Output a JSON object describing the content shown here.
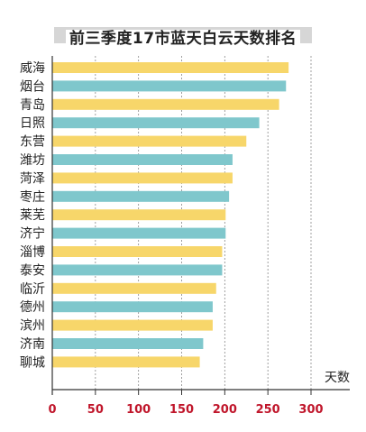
{
  "colors": {
    "bar_a": "#f7d66a",
    "bar_b": "#7fc7cc",
    "tick_text": "#c0162b",
    "axis": "#333333",
    "grid": "#888888"
  },
  "chart_data": {
    "type": "bar",
    "orientation": "horizontal",
    "title": "前三季度17市蓝天白云天数排名",
    "xlabel": "天数",
    "ylabel": "",
    "xlim": [
      0,
      300
    ],
    "xticks": [
      "0",
      "50",
      "100",
      "150",
      "200",
      "250",
      "300"
    ],
    "xtick_values": [
      0,
      50,
      100,
      150,
      200,
      250,
      300
    ],
    "grid": "vertical-dashed",
    "categories": [
      "威海",
      "烟台",
      "青岛",
      "日照",
      "东营",
      "潍坊",
      "菏泽",
      "枣庄",
      "莱芜",
      "济宁",
      "淄博",
      "泰安",
      "临沂",
      "德州",
      "滨州",
      "济南",
      "聊城"
    ],
    "values": [
      274,
      271,
      263,
      240,
      225,
      209,
      209,
      205,
      201,
      201,
      197,
      197,
      190,
      186,
      186,
      175,
      171
    ],
    "bar_colors": [
      "bar_a",
      "bar_b",
      "bar_a",
      "bar_b",
      "bar_a",
      "bar_b",
      "bar_a",
      "bar_b",
      "bar_a",
      "bar_b",
      "bar_a",
      "bar_b",
      "bar_a",
      "bar_b",
      "bar_a",
      "bar_b",
      "bar_a"
    ]
  }
}
